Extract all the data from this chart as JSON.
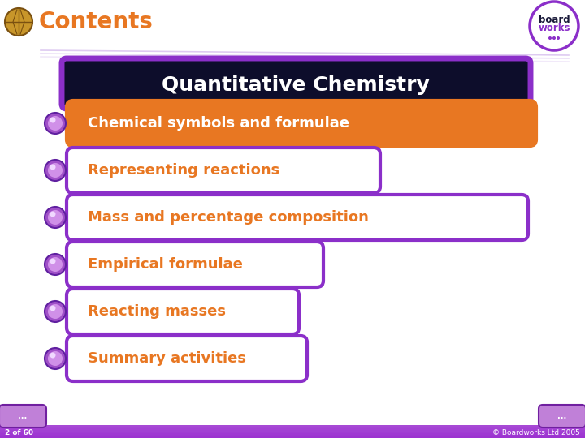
{
  "title_text": "Contents",
  "title_color": "#E87722",
  "bg_color": "#FFFFFF",
  "header_box_text": "Quantitative Chemistry",
  "header_box_bg": "#0D0D2B",
  "header_box_border": "#8B2FC9",
  "header_text_color": "#FFFFFF",
  "items": [
    "Chemical symbols and formulae",
    "Representing reactions",
    "Mass and percentage composition",
    "Empirical formulae",
    "Reacting masses",
    "Summary activities"
  ],
  "item_text_color": "#E87722",
  "item_border_color": "#8B2FC9",
  "item_filled_bg": "#E87722",
  "item_filled_text": "#FFFFFF",
  "item_white_bg": "#FFFFFF",
  "bullet_outer": "#A050C8",
  "bullet_inner": "#D090E8",
  "bottom_bar_color": "#9B30D0",
  "bottom_text": "2 of 60",
  "bottom_right_text": "© Boardworks Ltd 2005",
  "bottom_text_color": "#FFFFFF",
  "diag_line_color": "#C8A8E8",
  "board_works_border": "#8B2FC9"
}
